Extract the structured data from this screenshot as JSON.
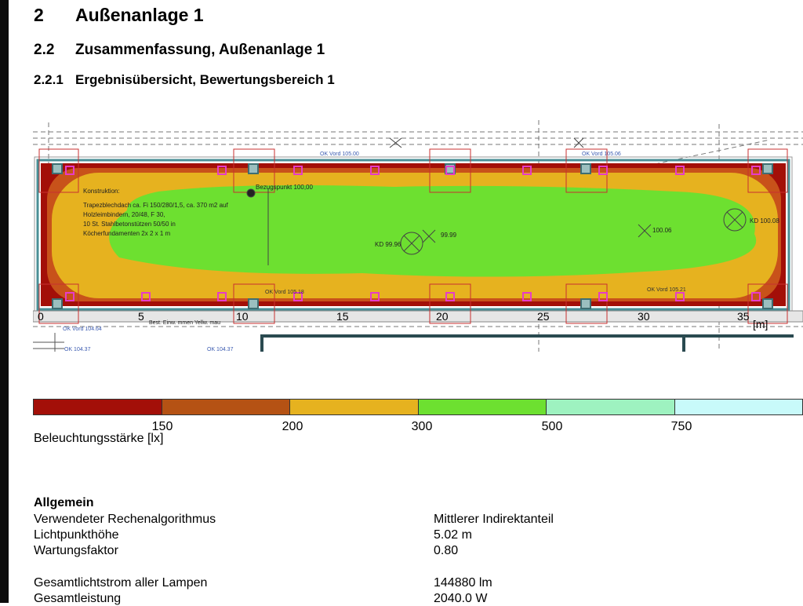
{
  "headings": {
    "h1": {
      "number": "2",
      "text": "Außenanlage 1"
    },
    "h2": {
      "number": "2.2",
      "text": "Zusammenfassung, Außenanlage 1"
    },
    "h3": {
      "number": "2.2.1",
      "text": "Ergebnisübersicht, Bewertungsbereich 1"
    }
  },
  "plan": {
    "x_ticks": [
      "0",
      "5",
      "10",
      "15",
      "20",
      "25",
      "30",
      "35"
    ],
    "x_unit": "[m]",
    "level_labels": [
      "OK Vord 105.00",
      "OK Vord 105.06",
      "OK Vord 105.21",
      "OK Vord 105.18",
      "OK Vord 104.64",
      "OK 104.37",
      "OK 104.37"
    ],
    "reference_point": "Bezugspunkt 100,00",
    "kd_labels": [
      "KD 99.96",
      "99.99",
      "100.06",
      "KD 100.08"
    ],
    "construction_note": [
      "Konstruktion:",
      "Trapezblechdach ca. Fi 150/280/1,5, ca. 370 m2 auf",
      "Holzleimbindern, 20/48, F 30,",
      "10 St. Stahlbetonstützen 50/50 in",
      "Köcherfundamenten 2x 2 x 1 m"
    ],
    "bottom_note": "Best. Einw. mmen Yellw. mau",
    "colors": {
      "red": "#a30f08",
      "orange": "#c8521a",
      "yellow": "#e6b21f",
      "green": "#6de030",
      "luminaire": "#e63cc8"
    }
  },
  "legend": {
    "colors": [
      "#a30f08",
      "#b55214",
      "#e6b21f",
      "#6de030",
      "#9ef2c0",
      "#c8fafa"
    ],
    "ticks": [
      "150",
      "200",
      "300",
      "500",
      "750"
    ],
    "unit_label": "Beleuchtungsstärke [lx]"
  },
  "general": {
    "title": "Allgemein",
    "rows": [
      {
        "label": "Verwendeter Rechenalgorithmus",
        "value": "Mittlerer Indirektanteil"
      },
      {
        "label": "Lichtpunkthöhe",
        "value": "5.02 m"
      },
      {
        "label": "Wartungsfaktor",
        "value": "0.80"
      },
      {
        "label": "Gesamtlichtstrom aller Lampen",
        "value": "144880 lm"
      },
      {
        "label": "Gesamtleistung",
        "value": "2040.0 W"
      }
    ]
  }
}
